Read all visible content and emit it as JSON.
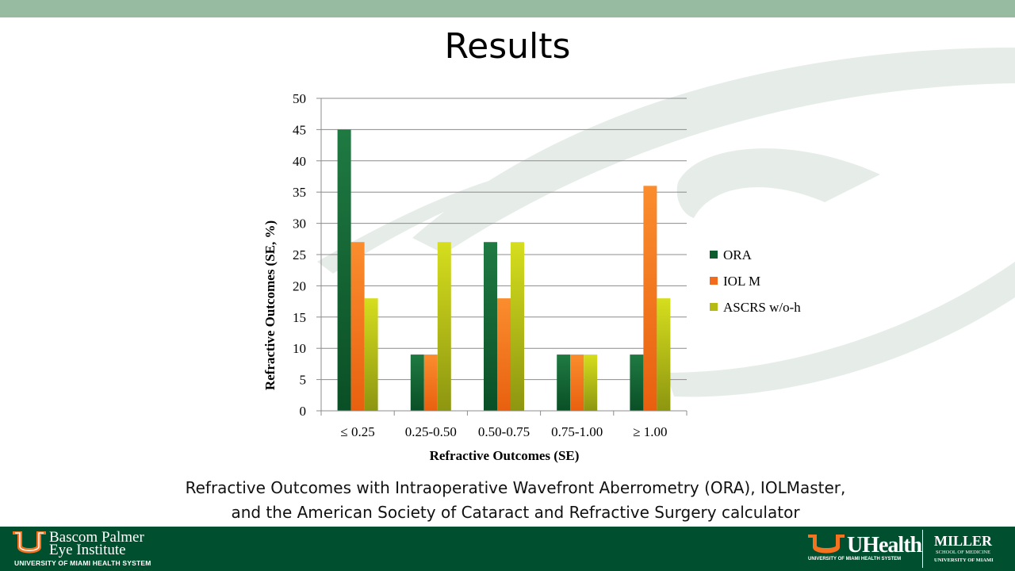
{
  "slide": {
    "title": "Results",
    "caption_line1": "Refractive Outcomes with Intraoperative Wavefront Aberrometry (ORA), IOLMaster,",
    "caption_line2": "and the American Society of Cataract and Refractive Surgery calculator"
  },
  "footer": {
    "left_logo_line1": "Bascom Palmer",
    "left_logo_line2": "Eye Institute",
    "left_logo_sub": "UNIVERSITY OF MIAMI HEALTH SYSTEM",
    "right_logo_main": "UHealth",
    "right_logo_sub": "UNIVERSITY OF MIAMI HEALTH SYSTEM",
    "miller_main": "MILLER",
    "miller_sub1": "SCHOOL OF MEDICINE",
    "miller_sub2": "UNIVERSITY OF MIAMI"
  },
  "colors": {
    "top_bar": "#96bba1",
    "footer": "#005030",
    "watermark": "#e6ede8",
    "accent_orange": "#f47321"
  },
  "chart_data": {
    "type": "bar",
    "title": "",
    "xlabel": "Refractive Outcomes (SE)",
    "ylabel": "Refractive Outcomes (SE, %)",
    "categories": [
      "≤ 0.25",
      "0.25-0.50",
      "0.50-0.75",
      "0.75-1.00",
      "≥ 1.00"
    ],
    "series": [
      {
        "name": "ORA",
        "values": [
          45,
          9,
          27,
          9,
          9
        ],
        "color": "#0d5c2e"
      },
      {
        "name": "IOL M",
        "values": [
          27,
          9,
          18,
          9,
          36
        ],
        "color": "#f26b1d"
      },
      {
        "name": "ASCRS w/o-h",
        "values": [
          18,
          27,
          27,
          9,
          18
        ],
        "color": "#b5bb12"
      }
    ],
    "ylim": [
      0,
      50
    ],
    "yticks": [
      0,
      5,
      10,
      15,
      20,
      25,
      30,
      35,
      40,
      45,
      50
    ],
    "grid": true,
    "legend_position": "right"
  }
}
